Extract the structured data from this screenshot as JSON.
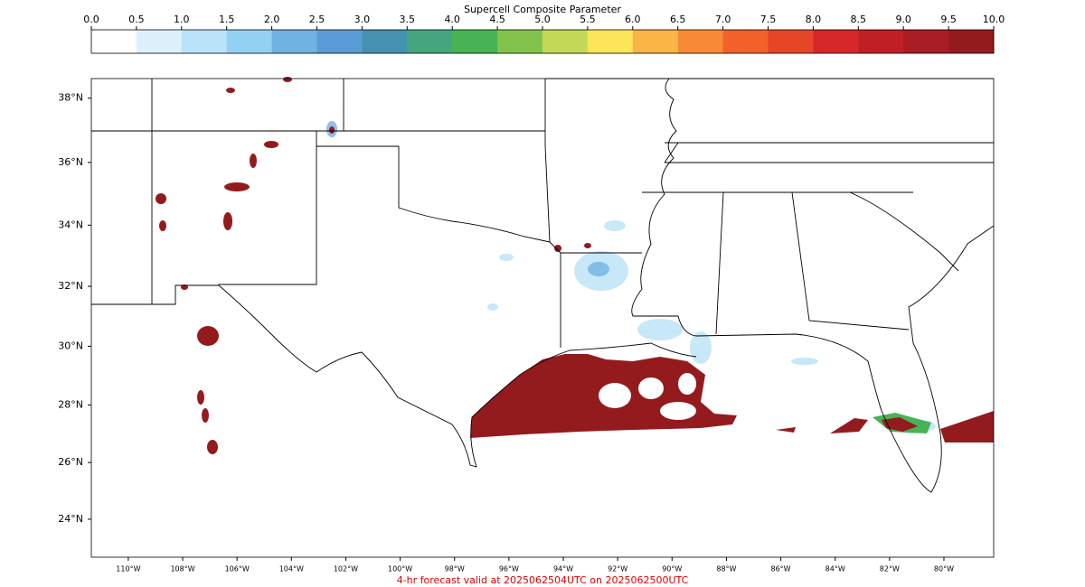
{
  "colorbar": {
    "title": "Supercell Composite Parameter",
    "ticks": [
      {
        "value": 0,
        "label": "0.0"
      },
      0.5,
      {
        "value": 1,
        "label": "1.0"
      },
      1.5,
      {
        "value": 2,
        "label": "2.0"
      },
      2.5,
      {
        "value": 3,
        "label": "3.0"
      },
      3.5,
      {
        "value": 4,
        "label": "4.0"
      },
      4.5,
      {
        "value": 5,
        "label": "5.0"
      },
      5.5,
      {
        "value": 6,
        "label": "6.0"
      },
      6.5,
      {
        "value": 7,
        "label": "7.0"
      },
      7.5,
      {
        "value": 8,
        "label": "8.0"
      },
      8.5,
      {
        "value": 9,
        "label": "9.0"
      },
      9.5,
      {
        "value": 10,
        "label": "10.0"
      }
    ],
    "colors": [
      "#ffffff",
      "#ddf1fc",
      "#b9e3f8",
      "#93d0f2",
      "#70b2e2",
      "#5b9bd6",
      "#4591b0",
      "#45a57f",
      "#47b354",
      "#82c44b",
      "#c3d957",
      "#fbe558",
      "#f9b546",
      "#f68a36",
      "#f26129",
      "#e54628",
      "#d62828",
      "#c11f26",
      "#a81d24",
      "#931b1e"
    ]
  },
  "map": {
    "xlim": [
      -111.36,
      -78.17
    ],
    "ylim": [
      22.64,
      38.6
    ],
    "lat_ticks": [
      {
        "value": 38,
        "label": "38°N"
      },
      {
        "value": 36,
        "label": "36°N"
      },
      {
        "value": 34,
        "label": "34°N"
      },
      {
        "value": 32,
        "label": "32°N"
      },
      {
        "value": 30,
        "label": "30°N"
      },
      {
        "value": 28,
        "label": "28°N"
      },
      {
        "value": 26,
        "label": "26°N"
      },
      {
        "value": 24,
        "label": "24°N"
      }
    ],
    "lon_ticks": [
      {
        "value": -110,
        "label": "110°W"
      },
      {
        "value": -108,
        "label": "108°W"
      },
      {
        "value": -106,
        "label": "106°W"
      },
      {
        "value": -104,
        "label": "104°W"
      },
      {
        "value": -102,
        "label": "102°W"
      },
      {
        "value": -100,
        "label": "100°W"
      },
      {
        "value": -98,
        "label": "98°W"
      },
      {
        "value": -96,
        "label": "96°W"
      },
      {
        "value": -94,
        "label": "94°W"
      },
      {
        "value": -92,
        "label": "92°W"
      },
      {
        "value": -90,
        "label": "90°W"
      },
      {
        "value": -88,
        "label": "88°W"
      },
      {
        "value": -86,
        "label": "86°W"
      },
      {
        "value": -84,
        "label": "84°W"
      },
      {
        "value": -82,
        "label": "82°W"
      },
      {
        "value": -80,
        "label": "80°W"
      }
    ]
  },
  "footer": "4-hr forecast valid at 2025062504UTC on 2025062500UTC"
}
